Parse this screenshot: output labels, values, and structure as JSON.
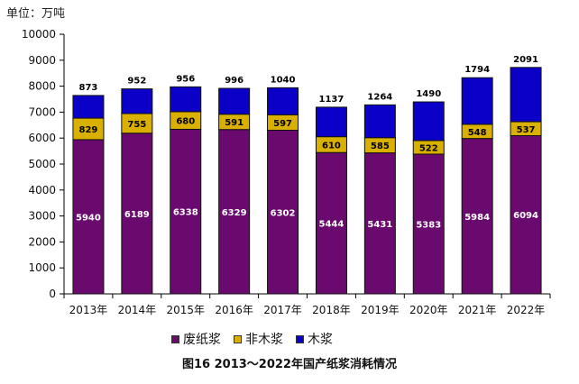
{
  "unit_label": "单位：万吨",
  "caption": "图16  2013～2022年国产纸浆消耗情况",
  "colors": {
    "waste_paper": "#6a0a6e",
    "non_wood": "#d9b000",
    "wood": "#0a00c8",
    "label_light": "#ffffff",
    "label_dark": "#000000"
  },
  "chart_data": {
    "type": "bar",
    "stacked": true,
    "title": "图16  2013～2022年国产纸浆消耗情况",
    "ylabel": "单位：万吨",
    "ylim": [
      0,
      10000
    ],
    "yticks": [
      "0",
      "1000",
      "2000",
      "3000",
      "4000",
      "5000",
      "6000",
      "7000",
      "8000",
      "9000",
      "10000"
    ],
    "categories": [
      "2013年",
      "2014年",
      "2015年",
      "2016年",
      "2017年",
      "2018年",
      "2019年",
      "2020年",
      "2021年",
      "2022年"
    ],
    "series": [
      {
        "name": "废纸浆",
        "values": [
          5940,
          6189,
          6338,
          6329,
          6302,
          5444,
          5431,
          5383,
          5984,
          6094
        ]
      },
      {
        "name": "非木浆",
        "values": [
          829,
          755,
          680,
          591,
          597,
          610,
          585,
          522,
          548,
          537
        ]
      },
      {
        "name": "木浆",
        "values": [
          873,
          952,
          956,
          996,
          1040,
          1137,
          1264,
          1490,
          1794,
          2091
        ]
      }
    ],
    "grid": false,
    "legend_position": "bottom"
  }
}
